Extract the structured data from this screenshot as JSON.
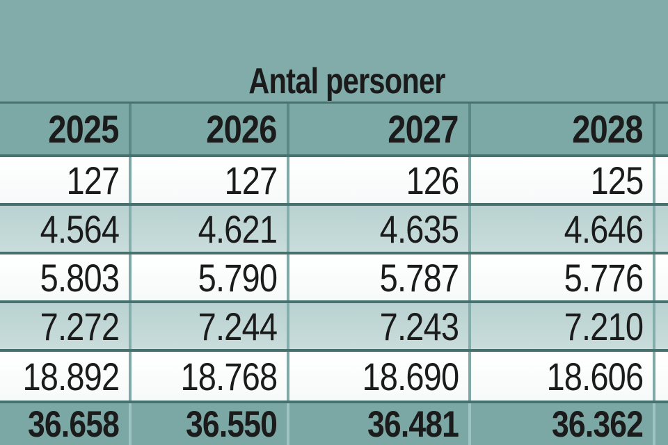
{
  "title": "Antal personer",
  "chart_data": {
    "type": "table",
    "title": "Antal personer",
    "columns": [
      "2025",
      "2026",
      "2027",
      "2028"
    ],
    "rows": [
      [
        "127",
        "127",
        "126",
        "125"
      ],
      [
        "4.564",
        "4.621",
        "4.635",
        "4.646"
      ],
      [
        "5.803",
        "5.790",
        "5.787",
        "5.776"
      ],
      [
        "7.272",
        "7.244",
        "7.243",
        "7.210"
      ],
      [
        "18.892",
        "18.768",
        "18.690",
        "18.606"
      ]
    ],
    "totals_row": [
      "36.658",
      "36.550",
      "36.481",
      "36.362"
    ],
    "layout_hints": {
      "number_format": "thousands separated by dot",
      "alignment": "right",
      "left_column_and_fifth_year_column_cut_off_at_edges": true
    }
  },
  "palette": {
    "page_background": "#82ACA9",
    "header_row_background": "#7CA8A5",
    "light_row_background": "#C1D8D6",
    "white_row_background": "#FFFFFF",
    "totals_row_background": "#7BA7A4",
    "horizontal_border": "#46716F",
    "text": "#1B1B1B"
  }
}
